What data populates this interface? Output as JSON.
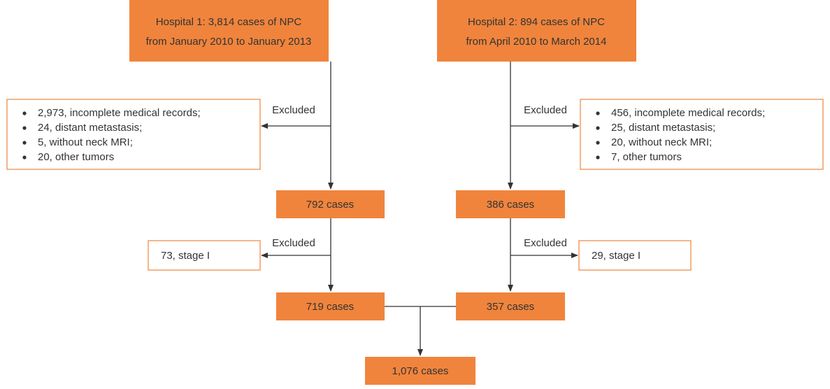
{
  "hospital1": {
    "line1": "Hospital 1: 3,814 cases of NPC",
    "line2": "from January 2010 to January 2013"
  },
  "hospital2": {
    "line1": "Hospital 2: 894 cases of NPC",
    "line2": "from April 2010 to March 2014"
  },
  "exclusion1": {
    "label": "Excluded",
    "items": [
      "2,973, incomplete medical records;",
      "24, distant metastasis;",
      "5, without neck MRI;",
      "20, other tumors"
    ]
  },
  "exclusion2": {
    "label": "Excluded",
    "items": [
      "456, incomplete medical records;",
      "25, distant metastasis;",
      "20, without neck MRI;",
      "7, other tumors"
    ]
  },
  "cases1": "792 cases",
  "cases2": "386 cases",
  "stage1": {
    "label": "Excluded",
    "text": "73, stage I"
  },
  "stage2": {
    "label": "Excluded",
    "text": "29, stage I"
  },
  "final1": "719 cases",
  "final2": "357 cases",
  "total": "1,076 cases"
}
